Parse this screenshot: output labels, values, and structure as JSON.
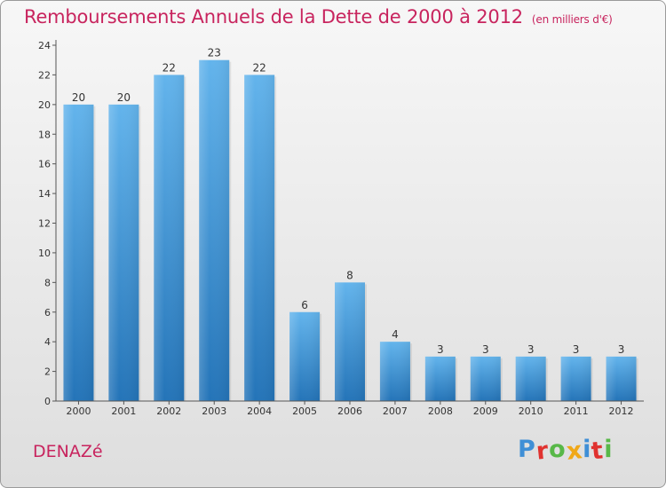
{
  "header": {
    "title": "Remboursements Annuels de la Dette de 2000 à 2012",
    "unit": "(en milliers d'€)"
  },
  "footer": {
    "place": "DENAZé",
    "logo": "Proxiti"
  },
  "colors": {
    "title": "#c8245e",
    "bar_top": "#63b4ec",
    "bar_bottom": "#2474b8",
    "logo_letters": [
      "#3f8fd6",
      "#e0322f",
      "#58b848",
      "#f0a818",
      "#3f8fd6",
      "#e0322f",
      "#58b848"
    ]
  },
  "chart_data": {
    "type": "bar",
    "title": "Remboursements Annuels de la Dette de 2000 à 2012",
    "subtitle": "(en milliers d'€)",
    "categories": [
      "2000",
      "2001",
      "2002",
      "2003",
      "2004",
      "2005",
      "2006",
      "2007",
      "2008",
      "2009",
      "2010",
      "2011",
      "2012"
    ],
    "values": [
      20,
      20,
      22,
      23,
      22,
      6,
      8,
      4,
      3,
      3,
      3,
      3,
      3
    ],
    "data_labels": [
      "20",
      "20",
      "22",
      "23",
      "22",
      "6",
      "8",
      "4",
      "3",
      "3",
      "3",
      "3",
      "3"
    ],
    "yticks": [
      "0",
      "2",
      "4",
      "6",
      "8",
      "10",
      "12",
      "14",
      "16",
      "18",
      "20",
      "22",
      "24"
    ],
    "ylim": [
      0,
      24
    ],
    "xlabel": "",
    "ylabel": "",
    "grid": false,
    "legend": "none"
  }
}
